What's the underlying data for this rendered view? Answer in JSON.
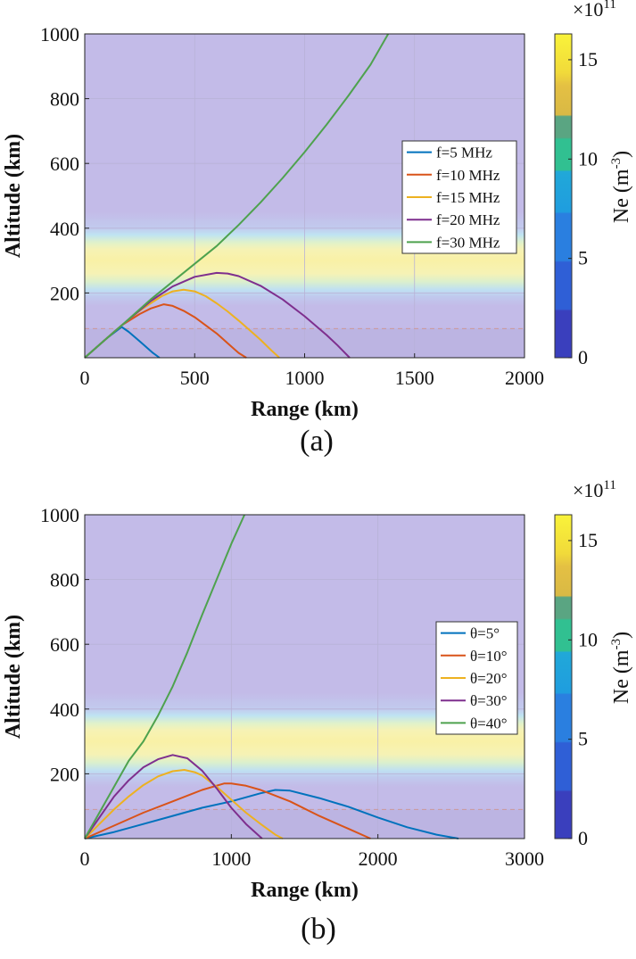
{
  "chart_data": [
    {
      "type": "line",
      "panel_label": "(a)",
      "xlabel": "Range (km)",
      "ylabel": "Altitude (km)",
      "xlim": [
        0,
        2000
      ],
      "ylim": [
        0,
        1000
      ],
      "xticks": [
        0,
        500,
        1000,
        1500,
        2000
      ],
      "yticks": [
        200,
        400,
        600,
        800,
        1000
      ],
      "grid": true,
      "legend_position": "right-middle",
      "background": "electron density field Ne, peak near 280 km",
      "colorbar": {
        "label": "Ne",
        "unit": "(m",
        "unit_exp": "-3",
        "unit_close": ")",
        "multiplier": "×10",
        "multiplier_exp": "11",
        "ticks": [
          0,
          5,
          10,
          15
        ],
        "range": [
          0,
          16.3
        ]
      },
      "reference_line_y": 90,
      "series": [
        {
          "name": "f=5 MHz",
          "color": "#0072BD",
          "x": [
            0,
            50,
            100,
            168,
            200,
            260,
            310,
            340
          ],
          "y": [
            0,
            30,
            60,
            95,
            80,
            45,
            15,
            0
          ]
        },
        {
          "name": "f=10 MHz",
          "color": "#D95319",
          "x": [
            0,
            100,
            168,
            250,
            300,
            360,
            400,
            450,
            500,
            550,
            600,
            650,
            700,
            735
          ],
          "y": [
            0,
            60,
            100,
            135,
            152,
            165,
            160,
            145,
            125,
            100,
            75,
            45,
            15,
            0
          ]
        },
        {
          "name": "f=15 MHz",
          "color": "#EDB120",
          "x": [
            0,
            100,
            168,
            250,
            300,
            350,
            400,
            450,
            500,
            550,
            600,
            650,
            700,
            750,
            800,
            850,
            885
          ],
          "y": [
            0,
            60,
            100,
            145,
            168,
            190,
            205,
            210,
            205,
            190,
            168,
            143,
            115,
            85,
            55,
            22,
            0
          ]
        },
        {
          "name": "f=20 MHz",
          "color": "#7E2F8E",
          "x": [
            0,
            100,
            168,
            300,
            400,
            500,
            600,
            650,
            700,
            800,
            900,
            1000,
            1100,
            1150,
            1205
          ],
          "y": [
            0,
            60,
            100,
            175,
            220,
            250,
            262,
            260,
            252,
            222,
            180,
            128,
            70,
            38,
            0
          ]
        },
        {
          "name": "f=30 MHz",
          "color": "#4EA24E",
          "x": [
            0,
            100,
            168,
            300,
            400,
            500,
            600,
            700,
            800,
            900,
            1000,
            1100,
            1200,
            1300,
            1380
          ],
          "y": [
            0,
            60,
            100,
            180,
            235,
            290,
            345,
            410,
            480,
            555,
            635,
            720,
            810,
            905,
            1000
          ]
        }
      ]
    },
    {
      "type": "line",
      "panel_label": "(b)",
      "xlabel": "Range (km)",
      "ylabel": "Altitude (km)",
      "xlim": [
        0,
        3000
      ],
      "ylim": [
        0,
        1000
      ],
      "xticks": [
        0,
        1000,
        2000,
        3000
      ],
      "yticks": [
        200,
        400,
        600,
        800,
        1000
      ],
      "grid": true,
      "legend_position": "right-middle",
      "background": "electron density field Ne, peak near 280 km",
      "colorbar": {
        "label": "Ne",
        "unit": "(m",
        "unit_exp": "-3",
        "unit_close": ")",
        "multiplier": "×10",
        "multiplier_exp": "11",
        "ticks": [
          0,
          5,
          10,
          15
        ],
        "range": [
          0,
          16.3
        ]
      },
      "reference_line_y": 90,
      "series": [
        {
          "name": "θ=5°",
          "color": "#0072BD",
          "x": [
            0,
            200,
            400,
            600,
            800,
            1000,
            1200,
            1300,
            1400,
            1600,
            1800,
            2000,
            2200,
            2400,
            2550
          ],
          "y": [
            0,
            20,
            45,
            70,
            95,
            115,
            140,
            150,
            148,
            125,
            98,
            65,
            35,
            12,
            0
          ]
        },
        {
          "name": "θ=10°",
          "color": "#D95319",
          "x": [
            0,
            200,
            400,
            600,
            800,
            950,
            1000,
            1100,
            1200,
            1400,
            1600,
            1800,
            1950
          ],
          "y": [
            0,
            40,
            80,
            115,
            150,
            170,
            170,
            163,
            150,
            115,
            70,
            30,
            0
          ]
        },
        {
          "name": "θ=20°",
          "color": "#EDB120",
          "x": [
            0,
            100,
            200,
            300,
            400,
            500,
            600,
            680,
            750,
            800,
            900,
            1000,
            1100,
            1200,
            1300,
            1350
          ],
          "y": [
            0,
            45,
            90,
            130,
            165,
            192,
            208,
            212,
            205,
            195,
            160,
            120,
            80,
            45,
            12,
            0
          ]
        },
        {
          "name": "θ=30°",
          "color": "#7E2F8E",
          "x": [
            0,
            100,
            200,
            300,
            400,
            500,
            600,
            700,
            800,
            900,
            1000,
            1100,
            1210
          ],
          "y": [
            0,
            65,
            130,
            180,
            220,
            245,
            258,
            248,
            210,
            155,
            95,
            45,
            0
          ]
        },
        {
          "name": "θ=40°",
          "color": "#4EA24E",
          "x": [
            0,
            100,
            200,
            300,
            400,
            500,
            600,
            700,
            800,
            900,
            1000,
            1090
          ],
          "y": [
            0,
            80,
            160,
            240,
            300,
            380,
            470,
            575,
            690,
            800,
            910,
            1000
          ]
        }
      ]
    }
  ]
}
